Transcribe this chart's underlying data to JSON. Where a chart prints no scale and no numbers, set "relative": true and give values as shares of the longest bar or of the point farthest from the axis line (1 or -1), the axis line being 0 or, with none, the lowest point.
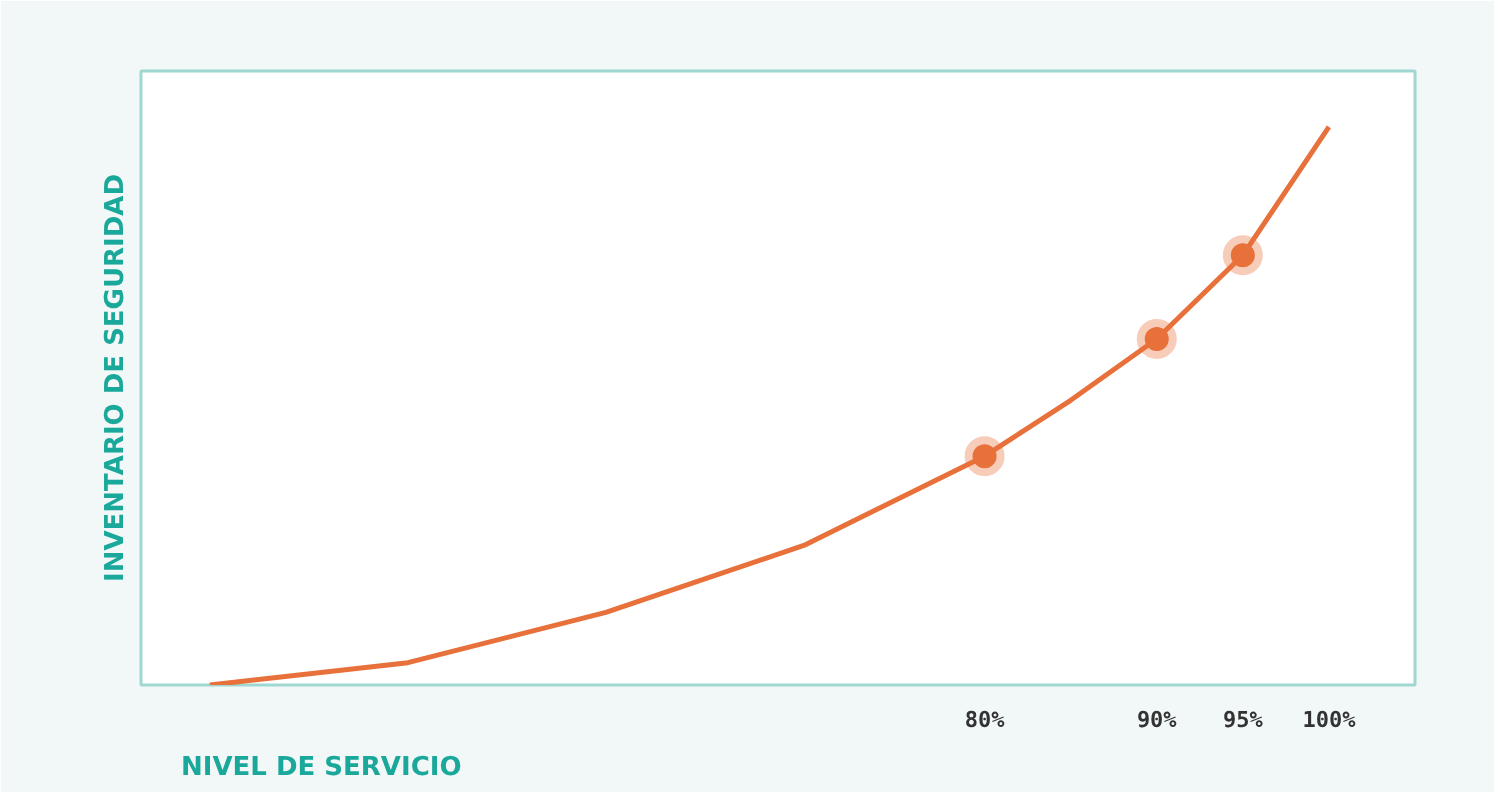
{
  "chart_data": {
    "type": "line",
    "relative": true,
    "xlabel": "NIVEL DE SERVICIO",
    "ylabel": "INVENTARIO DE SEGURIDAD",
    "xlim": [
      31,
      105
    ],
    "xticks": [
      {
        "value": 80,
        "label": "80%"
      },
      {
        "value": 90,
        "label": "90%"
      },
      {
        "value": 95,
        "label": "95%"
      },
      {
        "value": 100,
        "label": "100%"
      }
    ],
    "series": [
      {
        "color": "#e8703a",
        "x": [
          35,
          46.5,
          58,
          69.5,
          80,
          85,
          90,
          95,
          100
        ],
        "values": [
          0,
          0.04,
          0.13,
          0.25,
          0.41,
          0.51,
          0.62,
          0.77,
          1.0
        ]
      },
      {
        "type": "scatter",
        "marker": "circle",
        "color": "#e8703a",
        "x": [
          80,
          90,
          95
        ],
        "values": [
          0.41,
          0.62,
          0.77
        ]
      }
    ]
  }
}
